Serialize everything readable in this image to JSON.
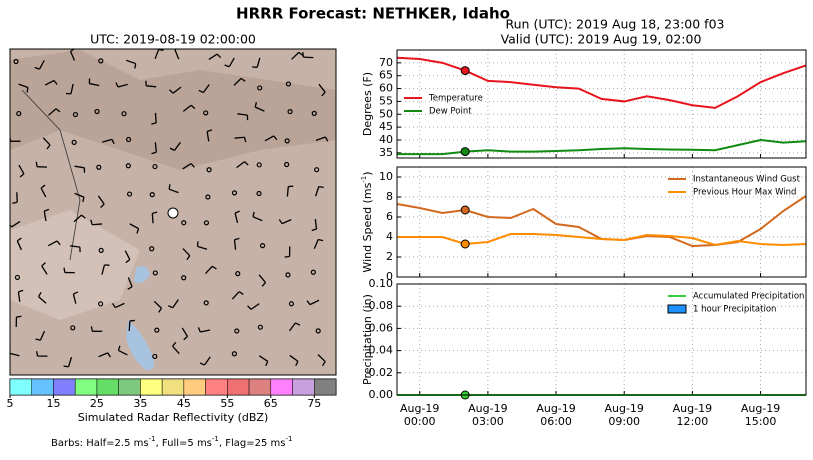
{
  "header": {
    "title": "HRRR Forecast: NETHKER, Idaho",
    "run": "Run (UTC): 2019 Aug 18, 23:00 f03",
    "valid": "Valid (UTC): 2019 Aug 19, 02:00"
  },
  "map": {
    "title": "UTC: 2019-08-19 02:00:00",
    "colorbar": {
      "label": "Simulated Radar Reflectivity (dBZ)",
      "bounds": [
        5,
        80
      ],
      "colors": [
        "#80ffff",
        "#66c2ff",
        "#8080ff",
        "#80ff80",
        "#66dd66",
        "#7fc97f",
        "#ffff80",
        "#f0e080",
        "#ffcc80",
        "#ff8080",
        "#ee7070",
        "#dd8080",
        "#ff80ff",
        "#c8a0e0",
        "#808080"
      ],
      "ticks": [
        5,
        15,
        25,
        35,
        45,
        55,
        65,
        75
      ]
    },
    "note": [
      "Barbs: Half=2.5 ms",
      "-1",
      ", Full=5 ms",
      "-1",
      ", Flag=25 ms",
      "-1"
    ]
  },
  "chart_data": [
    {
      "type": "line",
      "ylabel": [
        "Degrees (F)"
      ],
      "xlim": [
        0,
        18
      ],
      "xticks": [
        1,
        4,
        7,
        10,
        13,
        16
      ],
      "ylim": [
        33,
        75
      ],
      "yticks": [
        35,
        40,
        45,
        50,
        55,
        60,
        65,
        70
      ],
      "grid": true,
      "legend": "center left",
      "marker_index": 3,
      "series": [
        {
          "name": "Temperature",
          "color": "#e8141c",
          "kind": "line",
          "values": [
            72,
            71.5,
            70,
            67,
            63,
            62.5,
            61.5,
            60.5,
            60,
            56,
            55,
            57,
            55.5,
            53.5,
            52.5,
            57,
            62.5,
            66,
            69
          ]
        },
        {
          "name": "Dew Point",
          "color": "#118a11",
          "kind": "line",
          "values": [
            34.5,
            34.5,
            34.5,
            35.5,
            36,
            35.5,
            35.5,
            35.7,
            36,
            36.5,
            36.8,
            36.5,
            36.3,
            36.2,
            36,
            38,
            40,
            39,
            39.5
          ]
        }
      ]
    },
    {
      "type": "line",
      "ylabel": [
        "Wind Speed (ms",
        "-1",
        ")"
      ],
      "xlim": [
        0,
        18
      ],
      "xticks": [
        1,
        4,
        7,
        10,
        13,
        16
      ],
      "ylim": [
        0,
        11
      ],
      "yticks": [
        0,
        2,
        4,
        6,
        8,
        10
      ],
      "grid": true,
      "legend": "upper right",
      "marker_index": 3,
      "series": [
        {
          "name": "Instantaneous Wind Gust",
          "color": "#d2691e",
          "kind": "line",
          "values": [
            7.3,
            6.9,
            6.4,
            6.7,
            6.0,
            5.9,
            6.8,
            5.3,
            5.0,
            3.8,
            3.7,
            4.1,
            4.0,
            3.1,
            3.2,
            3.5,
            4.8,
            6.6,
            8.1
          ]
        },
        {
          "name": "Previous Hour Max Wind",
          "color": "#ff8c00",
          "kind": "line",
          "values": [
            4.0,
            4.0,
            4.0,
            3.3,
            3.5,
            4.3,
            4.3,
            4.2,
            4.0,
            3.8,
            3.7,
            4.2,
            4.1,
            3.9,
            3.2,
            3.6,
            3.3,
            3.2,
            3.3
          ]
        }
      ]
    },
    {
      "type": "line",
      "ylabel": [
        "Precipitation (in)"
      ],
      "xlim": [
        0,
        18
      ],
      "xticks": [
        {
          "value": 1,
          "label": "Aug-19\n00:00"
        },
        {
          "value": 4,
          "label": "Aug-19\n03:00"
        },
        {
          "value": 7,
          "label": "Aug-19\n06:00"
        },
        {
          "value": 10,
          "label": "Aug-19\n09:00"
        },
        {
          "value": 13,
          "label": "Aug-19\n12:00"
        },
        {
          "value": 16,
          "label": "Aug-19\n15:00"
        }
      ],
      "ylim": [
        0,
        0.1
      ],
      "yticks": [
        {
          "value": 0,
          "label": "0.00"
        },
        {
          "value": 0.02,
          "label": "0.02"
        },
        {
          "value": 0.04,
          "label": "0.04"
        },
        {
          "value": 0.06,
          "label": "0.06"
        },
        {
          "value": 0.08,
          "label": "0.08"
        },
        {
          "value": 0.1,
          "label": "0.10"
        }
      ],
      "grid": true,
      "legend": "upper right",
      "marker_index": 3,
      "series": [
        {
          "name": "Accumulated Precipitation",
          "color": "#32cd32",
          "kind": "line",
          "values": [
            0,
            0,
            0,
            0,
            0,
            0,
            0,
            0,
            0,
            0,
            0,
            0,
            0,
            0,
            0,
            0,
            0,
            0,
            0
          ]
        },
        {
          "name": "1 hour Precipitation",
          "color": "#1e90ff",
          "kind": "bar",
          "values": [
            0,
            0,
            0,
            0,
            0,
            0,
            0,
            0,
            0,
            0,
            0,
            0,
            0,
            0,
            0,
            0,
            0,
            0,
            0
          ]
        }
      ]
    }
  ]
}
